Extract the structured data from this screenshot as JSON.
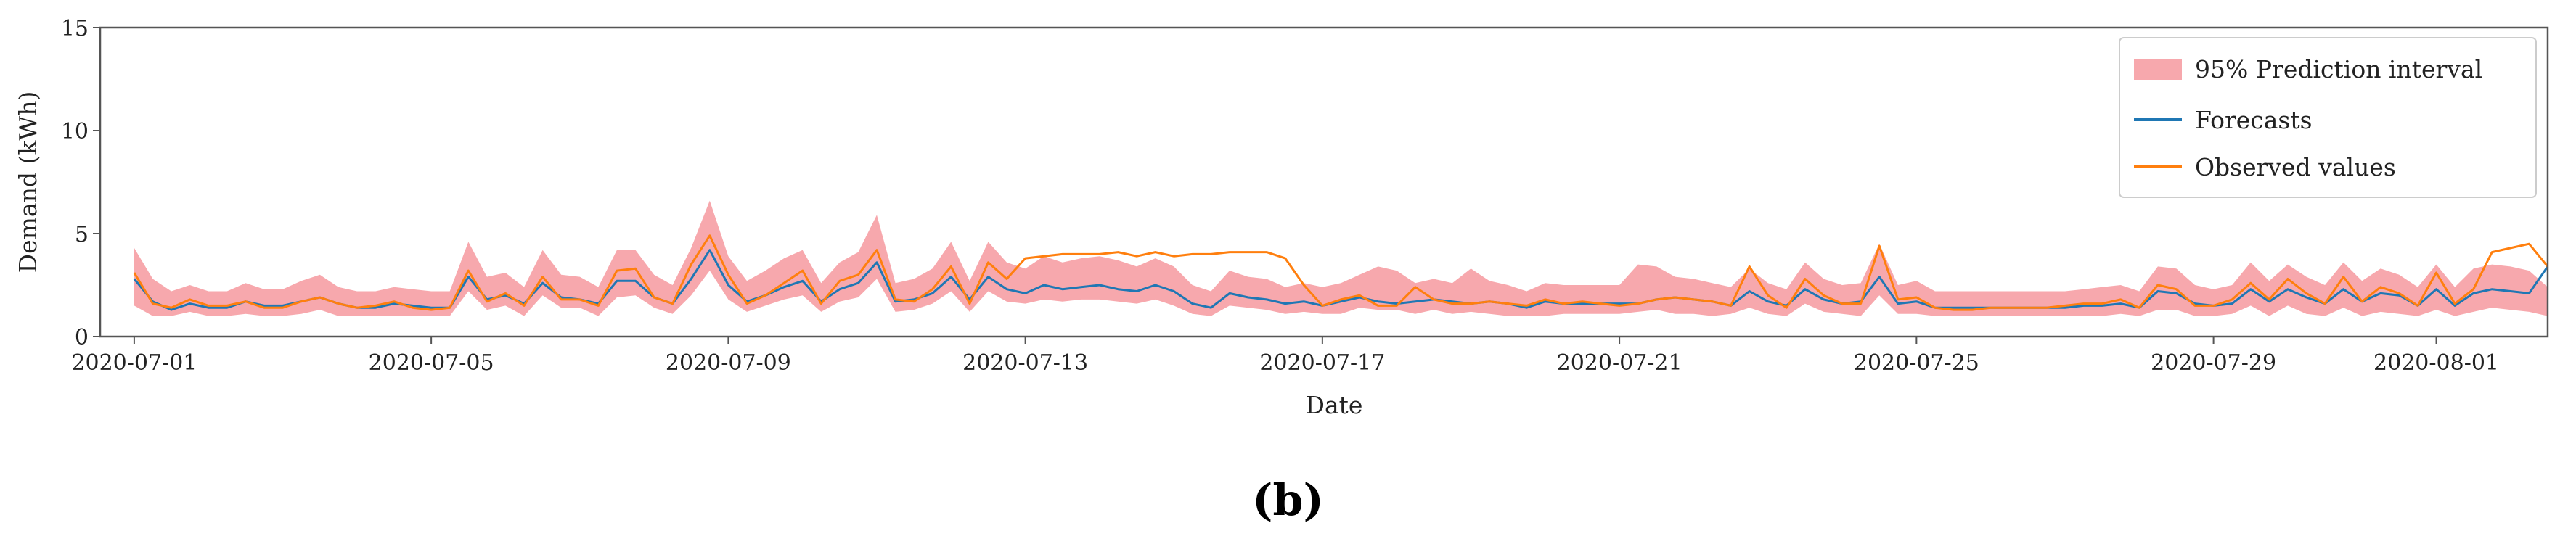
{
  "panel_label": "(b)",
  "colors": {
    "interval": "#f7a8ad",
    "forecast": "#1f77b4",
    "observed": "#ff7f0e",
    "axis": "#555555"
  },
  "chart_data": {
    "type": "line",
    "xlabel": "Date",
    "ylabel": "Demand (kWh)",
    "x_range": [
      "2020-06-30T13:00",
      "2020-08-02T12:00"
    ],
    "ylim": [
      0,
      15
    ],
    "yticks": [
      0,
      5,
      10,
      15
    ],
    "xticks": [
      "2020-07-01",
      "2020-07-05",
      "2020-07-09",
      "2020-07-13",
      "2020-07-17",
      "2020-07-21",
      "2020-07-25",
      "2020-07-29",
      "2020-08-01"
    ],
    "grid": false,
    "legend_placement": "top-right",
    "sample_step_hours": 6,
    "series": [
      {
        "name": "95% Prediction interval",
        "kind": "band",
        "start": "2020-07-01T00:00",
        "lower": [
          1.5,
          1.0,
          1.0,
          1.2,
          1.0,
          1.0,
          1.1,
          1.0,
          1.0,
          1.1,
          1.3,
          1.0,
          1.0,
          1.0,
          1.0,
          1.0,
          1.0,
          1.0,
          2.2,
          1.3,
          1.5,
          1.0,
          2.0,
          1.4,
          1.4,
          1.0,
          1.9,
          2.0,
          1.4,
          1.1,
          2.0,
          3.2,
          1.8,
          1.2,
          1.5,
          1.8,
          2.0,
          1.2,
          1.7,
          1.9,
          2.8,
          1.2,
          1.3,
          1.6,
          2.2,
          1.2,
          2.2,
          1.7,
          1.6,
          1.8,
          1.7,
          1.8,
          1.8,
          1.7,
          1.6,
          1.8,
          1.5,
          1.1,
          1.0,
          1.5,
          1.4,
          1.3,
          1.1,
          1.2,
          1.1,
          1.1,
          1.4,
          1.3,
          1.3,
          1.1,
          1.3,
          1.1,
          1.2,
          1.1,
          1.0,
          1.0,
          1.0,
          1.1,
          1.1,
          1.1,
          1.1,
          1.2,
          1.3,
          1.1,
          1.1,
          1.0,
          1.1,
          1.4,
          1.1,
          1.0,
          1.6,
          1.2,
          1.1,
          1.0,
          2.0,
          1.1,
          1.1,
          1.0,
          1.0,
          1.0,
          1.0,
          1.0,
          1.0,
          1.0,
          1.0,
          1.0,
          1.0,
          1.1,
          1.0,
          1.3,
          1.3,
          1.0,
          1.0,
          1.1,
          1.5,
          1.0,
          1.5,
          1.1,
          1.0,
          1.4,
          1.0,
          1.2,
          1.1,
          1.0,
          1.3,
          1.0,
          1.2,
          1.4,
          1.3,
          1.2,
          1.0
        ],
        "upper": [
          4.3,
          2.8,
          2.2,
          2.5,
          2.2,
          2.2,
          2.6,
          2.3,
          2.3,
          2.7,
          3.0,
          2.4,
          2.2,
          2.2,
          2.4,
          2.3,
          2.2,
          2.2,
          4.6,
          2.9,
          3.1,
          2.4,
          4.2,
          3.0,
          2.9,
          2.4,
          4.2,
          4.2,
          3.0,
          2.5,
          4.3,
          6.6,
          3.9,
          2.7,
          3.2,
          3.8,
          4.2,
          2.6,
          3.6,
          4.1,
          5.9,
          2.6,
          2.8,
          3.3,
          4.6,
          2.7,
          4.6,
          3.6,
          3.3,
          3.9,
          3.6,
          3.8,
          3.9,
          3.7,
          3.4,
          3.8,
          3.4,
          2.5,
          2.2,
          3.2,
          2.9,
          2.8,
          2.4,
          2.6,
          2.4,
          2.6,
          3.0,
          3.4,
          3.2,
          2.6,
          2.8,
          2.6,
          3.3,
          2.7,
          2.5,
          2.2,
          2.6,
          2.5,
          2.5,
          2.5,
          2.5,
          3.5,
          3.4,
          2.9,
          2.8,
          2.6,
          2.4,
          3.3,
          2.6,
          2.3,
          3.6,
          2.8,
          2.5,
          2.6,
          4.5,
          2.5,
          2.7,
          2.2,
          2.2,
          2.2,
          2.2,
          2.2,
          2.2,
          2.2,
          2.2,
          2.3,
          2.4,
          2.5,
          2.2,
          3.4,
          3.3,
          2.5,
          2.3,
          2.5,
          3.6,
          2.7,
          3.5,
          2.9,
          2.5,
          3.6,
          2.7,
          3.3,
          3.0,
          2.4,
          3.5,
          2.4,
          3.3,
          3.5,
          3.4,
          3.2,
          2.4
        ]
      },
      {
        "name": "Forecasts",
        "kind": "line",
        "start": "2020-07-01T00:00",
        "values": [
          2.8,
          1.7,
          1.3,
          1.6,
          1.4,
          1.4,
          1.7,
          1.5,
          1.5,
          1.7,
          1.9,
          1.6,
          1.4,
          1.4,
          1.6,
          1.5,
          1.4,
          1.4,
          2.9,
          1.8,
          2.0,
          1.6,
          2.6,
          1.9,
          1.8,
          1.6,
          2.7,
          2.7,
          1.9,
          1.6,
          2.8,
          4.2,
          2.5,
          1.7,
          2.0,
          2.4,
          2.7,
          1.7,
          2.3,
          2.6,
          3.6,
          1.7,
          1.8,
          2.1,
          2.9,
          1.8,
          2.9,
          2.3,
          2.1,
          2.5,
          2.3,
          2.4,
          2.5,
          2.3,
          2.2,
          2.5,
          2.2,
          1.6,
          1.4,
          2.1,
          1.9,
          1.8,
          1.6,
          1.7,
          1.5,
          1.7,
          1.9,
          1.7,
          1.6,
          1.7,
          1.8,
          1.7,
          1.6,
          1.7,
          1.6,
          1.4,
          1.7,
          1.6,
          1.6,
          1.6,
          1.6,
          1.6,
          1.8,
          1.9,
          1.8,
          1.7,
          1.5,
          2.2,
          1.7,
          1.5,
          2.3,
          1.8,
          1.6,
          1.7,
          2.9,
          1.6,
          1.7,
          1.4,
          1.4,
          1.4,
          1.4,
          1.4,
          1.4,
          1.4,
          1.4,
          1.5,
          1.5,
          1.6,
          1.4,
          2.2,
          2.1,
          1.6,
          1.5,
          1.6,
          2.3,
          1.7,
          2.3,
          1.9,
          1.6,
          2.3,
          1.7,
          2.1,
          2.0,
          1.5,
          2.3,
          1.5,
          2.1,
          2.3,
          2.2,
          2.1,
          3.4
        ]
      },
      {
        "name": "Observed values",
        "kind": "line",
        "start": "2020-07-01T00:00",
        "values": [
          3.1,
          1.6,
          1.4,
          1.8,
          1.5,
          1.5,
          1.7,
          1.4,
          1.4,
          1.7,
          1.9,
          1.6,
          1.4,
          1.5,
          1.7,
          1.4,
          1.3,
          1.4,
          3.2,
          1.7,
          2.1,
          1.5,
          2.9,
          1.8,
          1.8,
          1.5,
          3.2,
          3.3,
          1.9,
          1.6,
          3.5,
          4.9,
          3.0,
          1.6,
          2.0,
          2.6,
          3.2,
          1.6,
          2.7,
          3.0,
          4.2,
          1.8,
          1.7,
          2.3,
          3.4,
          1.6,
          3.6,
          2.8,
          3.8,
          3.9,
          4.0,
          4.0,
          4.0,
          4.1,
          3.9,
          4.1,
          3.9,
          4.0,
          4.0,
          4.1,
          4.1,
          4.1,
          3.8,
          2.5,
          1.5,
          1.8,
          2.0,
          1.5,
          1.5,
          2.4,
          1.8,
          1.6,
          1.6,
          1.7,
          1.6,
          1.5,
          1.8,
          1.6,
          1.7,
          1.6,
          1.5,
          1.6,
          1.8,
          1.9,
          1.8,
          1.7,
          1.5,
          3.4,
          2.0,
          1.4,
          2.8,
          2.0,
          1.6,
          1.6,
          4.4,
          1.8,
          1.9,
          1.4,
          1.3,
          1.3,
          1.4,
          1.4,
          1.4,
          1.4,
          1.5,
          1.6,
          1.6,
          1.8,
          1.4,
          2.5,
          2.3,
          1.5,
          1.5,
          1.8,
          2.6,
          1.8,
          2.8,
          2.1,
          1.6,
          2.9,
          1.7,
          2.4,
          2.1,
          1.5,
          3.1,
          1.6,
          2.3,
          4.1,
          4.3,
          4.5,
          3.4
        ]
      }
    ]
  }
}
